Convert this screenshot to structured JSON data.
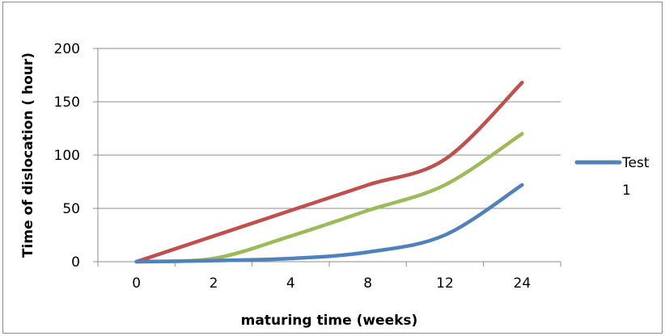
{
  "chart_data": {
    "type": "line",
    "title": "",
    "xlabel": "maturing time (weeks)",
    "ylabel": "Time of dislocation ( hour)",
    "categories": [
      "0",
      "2",
      "4",
      "8",
      "12",
      "24"
    ],
    "ylim": [
      0,
      200
    ],
    "yticks": [
      "0",
      "50",
      "100",
      "150",
      "200"
    ],
    "grid": "horizontal",
    "legend_position": "right",
    "series": [
      {
        "name": "Test 1",
        "color": "#4f81bd",
        "values": [
          0,
          1,
          3,
          9,
          25,
          72
        ]
      },
      {
        "name": "",
        "color": "#c0504d",
        "values": [
          0,
          24,
          48,
          72,
          96,
          168
        ]
      },
      {
        "name": "",
        "color": "#9bbb59",
        "values": [
          0,
          3,
          24,
          48,
          72,
          120
        ]
      }
    ],
    "legend": {
      "label_line1": "Test",
      "label_line2": "1",
      "color": "#4f81bd"
    }
  }
}
